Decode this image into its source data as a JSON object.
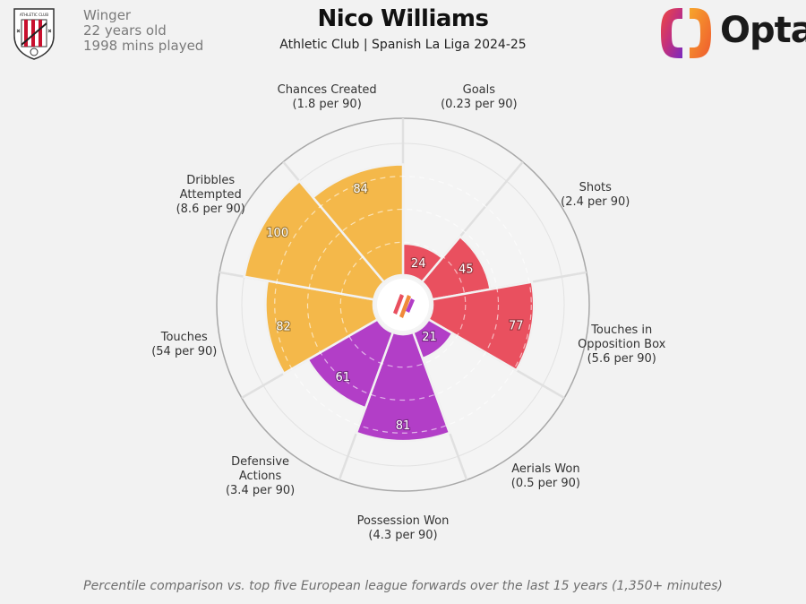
{
  "player": {
    "position": "Winger",
    "age": "22 years old",
    "minutes": "1998 mins played"
  },
  "title": "Nico Williams",
  "subtitle": "Athletic Club | Spanish La Liga 2024-25",
  "brand": {
    "logo_text": "Opta"
  },
  "crest_text": "ATHLETIC CLUB",
  "footnote": "Percentile comparison vs. top five European league forwards over the last 15 years (1,350+ minutes)",
  "chart_data": {
    "type": "radial-bar",
    "title": "Nico Williams",
    "scale": [
      0,
      100
    ],
    "categories": [
      {
        "label": "Goals",
        "per90": "(0.23 per 90)",
        "value": 24,
        "group": "attacking"
      },
      {
        "label": "Shots",
        "per90": "(2.4 per 90)",
        "value": 45,
        "group": "attacking"
      },
      {
        "label": "Touches in Opposition Box",
        "label_lines": [
          "Touches in",
          "Opposition Box"
        ],
        "per90": "(5.6 per 90)",
        "value": 77,
        "group": "attacking"
      },
      {
        "label": "Aerials Won",
        "per90": "(0.5 per 90)",
        "value": 21,
        "group": "defending"
      },
      {
        "label": "Possession Won",
        "per90": "(4.3 per 90)",
        "value": 81,
        "group": "defending"
      },
      {
        "label": "Defensive Actions",
        "label_lines": [
          "Defensive",
          "Actions"
        ],
        "per90": "(3.4 per 90)",
        "value": 61,
        "group": "defending"
      },
      {
        "label": "Touches",
        "per90": "(54 per 90)",
        "value": 82,
        "group": "possession"
      },
      {
        "label": "Dribbles Attempted",
        "label_lines": [
          "Dribbles",
          "Attempted"
        ],
        "per90": "(8.6 per 90)",
        "value": 100,
        "group": "possession"
      },
      {
        "label": "Chances Created",
        "per90": "(1.8 per 90)",
        "value": 84,
        "group": "possession"
      }
    ],
    "colors": {
      "attacking": "#e9505f",
      "defending": "#b23ec7",
      "possession": "#f4b84a"
    }
  }
}
